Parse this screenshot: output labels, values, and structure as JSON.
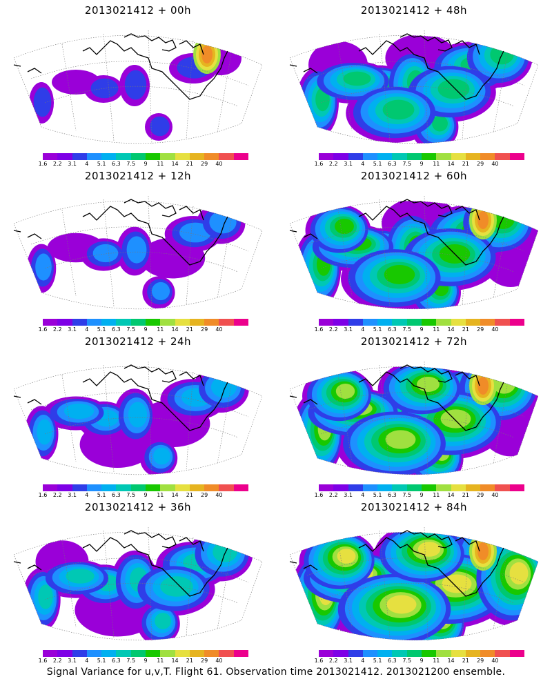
{
  "panels": [
    {
      "title": "2013021412 + 00h",
      "level": 0
    },
    {
      "title": "2013021412 + 48h",
      "level": 4
    },
    {
      "title": "2013021412 + 12h",
      "level": 1
    },
    {
      "title": "2013021412 + 60h",
      "level": 5
    },
    {
      "title": "2013021412 + 24h",
      "level": 2
    },
    {
      "title": "2013021412 + 72h",
      "level": 6
    },
    {
      "title": "2013021412 + 36h",
      "level": 3
    },
    {
      "title": "2013021412 + 84h",
      "level": 7
    }
  ],
  "colorbar": {
    "labels": [
      "1.6",
      "2.2",
      "3.1",
      "4",
      "5.1",
      "6.3",
      "7.5",
      "9",
      "11",
      "14",
      "21",
      "29",
      "40"
    ],
    "colors": [
      "#9a00d8",
      "#7e00e6",
      "#2f3de8",
      "#1e90ff",
      "#00b0f0",
      "#00c8b4",
      "#00c870",
      "#18c800",
      "#a0e040",
      "#e6e040",
      "#e6b420",
      "#f08c28",
      "#f05050",
      "#ec008c"
    ]
  },
  "footer": "Signal Variance for u,v,T. Flight 61. Observation time 2013021412. 2013021200 ensemble."
}
